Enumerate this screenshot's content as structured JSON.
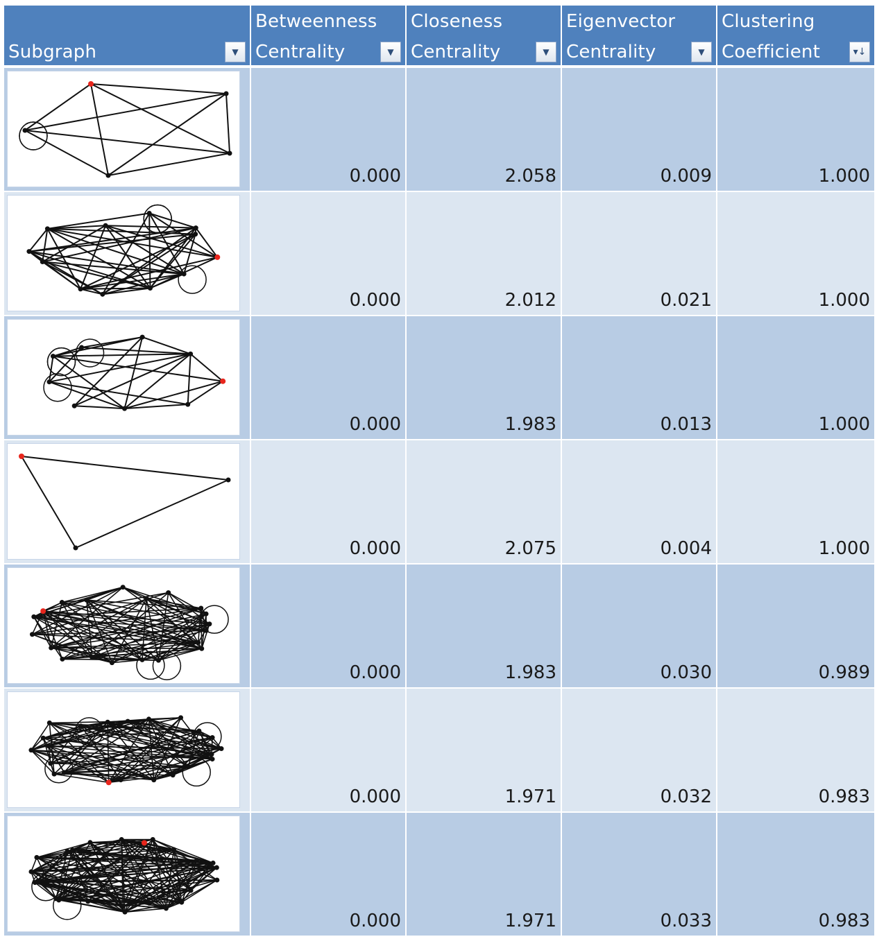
{
  "columns": [
    {
      "line1": "",
      "line2": "Subgraph",
      "filter_icon": "dropdown-arrow-icon"
    },
    {
      "line1": "Betweenness",
      "line2": "Centrality",
      "filter_icon": "dropdown-arrow-icon"
    },
    {
      "line1": "Closeness",
      "line2": "Centrality",
      "filter_icon": "dropdown-arrow-icon"
    },
    {
      "line1": "Eigenvector",
      "line2": "Centrality",
      "filter_icon": "dropdown-arrow-icon"
    },
    {
      "line1": "Clustering",
      "line2": "Coefficient",
      "filter_icon": "sort-descending-icon"
    }
  ],
  "colors": {
    "header": "#4f81bd",
    "row_dark": "#b8cce4",
    "row_light": "#dce6f1",
    "highlight_node": "#e8261d"
  },
  "rows": [
    {
      "betweenness": "0.000",
      "closeness": "2.058",
      "eigenvector": "0.009",
      "clustering": "1.000"
    },
    {
      "betweenness": "0.000",
      "closeness": "2.012",
      "eigenvector": "0.021",
      "clustering": "1.000"
    },
    {
      "betweenness": "0.000",
      "closeness": "1.983",
      "eigenvector": "0.013",
      "clustering": "1.000"
    },
    {
      "betweenness": "0.000",
      "closeness": "2.075",
      "eigenvector": "0.004",
      "clustering": "1.000"
    },
    {
      "betweenness": "0.000",
      "closeness": "1.983",
      "eigenvector": "0.030",
      "clustering": "0.989"
    },
    {
      "betweenness": "0.000",
      "closeness": "1.971",
      "eigenvector": "0.032",
      "clustering": "0.983"
    },
    {
      "betweenness": "0.000",
      "closeness": "1.971",
      "eigenvector": "0.033",
      "clustering": "0.983"
    }
  ]
}
